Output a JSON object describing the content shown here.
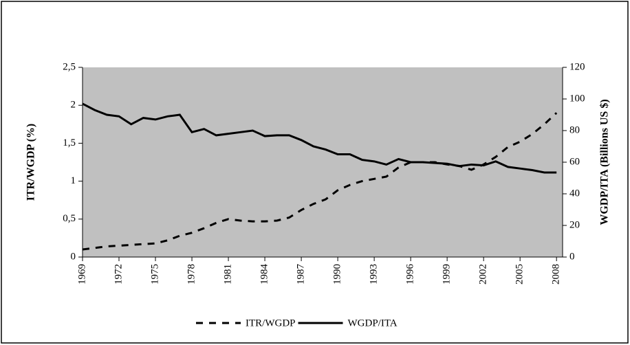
{
  "chart_data": {
    "type": "line",
    "x": [
      1969,
      1970,
      1971,
      1972,
      1973,
      1974,
      1975,
      1976,
      1977,
      1978,
      1979,
      1980,
      1981,
      1982,
      1983,
      1984,
      1985,
      1986,
      1987,
      1988,
      1989,
      1990,
      1991,
      1992,
      1993,
      1994,
      1995,
      1996,
      1997,
      1998,
      1999,
      2000,
      2001,
      2002,
      2003,
      2004,
      2005,
      2006,
      2007,
      2008
    ],
    "xlim": [
      1969,
      2008.5
    ],
    "xticks": [
      1969,
      1972,
      1975,
      1978,
      1981,
      1984,
      1987,
      1990,
      1993,
      1996,
      1999,
      2002,
      2005,
      2008
    ],
    "ylabel": "ITR/WGDP (%)",
    "y2label": "WGDP/ITA (Billions US $)",
    "ylim": [
      0,
      2.5
    ],
    "yticks": [
      0,
      {
        "value": 0.5,
        "label": "0,5"
      },
      1,
      {
        "value": 1.5,
        "label": "1,5"
      },
      2,
      {
        "value": 2.5,
        "label": "2,5"
      }
    ],
    "y2lim": [
      0,
      120
    ],
    "y2ticks": [
      0,
      20,
      40,
      60,
      80,
      100,
      120
    ],
    "series": [
      {
        "name": "ITR/WGDP",
        "color": "#000000",
        "dash": true,
        "values": [
          0.1,
          0.12,
          0.14,
          0.15,
          0.16,
          0.17,
          0.18,
          0.22,
          0.28,
          0.32,
          0.38,
          0.45,
          0.5,
          0.48,
          0.47,
          0.47,
          0.48,
          0.52,
          0.62,
          0.7,
          0.76,
          0.88,
          0.95,
          1.0,
          1.03,
          1.06,
          1.18,
          1.25,
          1.25,
          1.25,
          1.22,
          1.2,
          1.15,
          1.22,
          1.32,
          1.45,
          1.52,
          1.62,
          1.75,
          1.9
        ]
      },
      {
        "name": "WGDP/ITA",
        "color": "#000000",
        "dash": false,
        "axis": "y2",
        "values": [
          97,
          93,
          90,
          89,
          84,
          88,
          87,
          89,
          90,
          79,
          81,
          77,
          78,
          79,
          80,
          76.5,
          77,
          77,
          74,
          70,
          68,
          65,
          65,
          61.5,
          60.5,
          58.5,
          62,
          60,
          60,
          59.5,
          59,
          57.5,
          58.5,
          58,
          60.5,
          57,
          56,
          55,
          53.5,
          53.5
        ]
      }
    ]
  }
}
